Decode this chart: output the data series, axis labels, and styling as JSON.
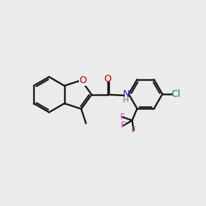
{
  "background_color": "#ebebeb",
  "bond_color": "#1a1a1a",
  "bond_width": 1.8,
  "figsize": [
    3.0,
    3.0
  ],
  "dpi": 100,
  "xlim": [
    0,
    12
  ],
  "ylim": [
    0,
    12
  ],
  "O_color": "#cc0000",
  "N_color": "#2222cc",
  "H_color": "#777777",
  "Cl_color": "#228822",
  "F_color": "#cc44cc"
}
